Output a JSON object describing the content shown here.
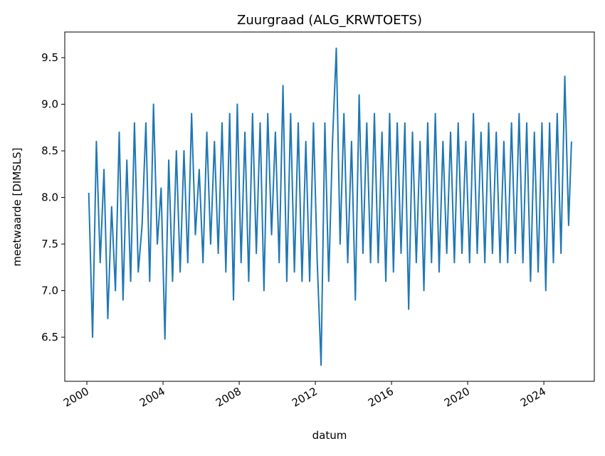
{
  "chart_data": {
    "type": "line",
    "title": "Zuurgraad (ALG_KRWTOETS)",
    "xlabel": "datum",
    "ylabel": "meetwaarde [DIMSLS]",
    "xlim": [
      1998.84,
      2026.65
    ],
    "ylim": [
      6.027,
      9.775
    ],
    "xticks": [
      2000,
      2004,
      2008,
      2012,
      2016,
      2020,
      2024
    ],
    "yticks": [
      6.5,
      {
        "value": 7,
        "label": "7.0"
      },
      7.5,
      {
        "value": 8,
        "label": "8.0"
      },
      8.5,
      {
        "value": 9,
        "label": "9.0"
      },
      9.5
    ],
    "x": [
      2000.1,
      2000.3,
      2000.5,
      2000.7,
      2000.9,
      2001.1,
      2001.3,
      2001.5,
      2001.7,
      2001.9,
      2002.1,
      2002.3,
      2002.5,
      2002.7,
      2002.9,
      2003.1,
      2003.3,
      2003.5,
      2003.7,
      2003.9,
      2004.1,
      2004.3,
      2004.5,
      2004.7,
      2004.9,
      2005.1,
      2005.3,
      2005.5,
      2005.7,
      2005.9,
      2006.1,
      2006.3,
      2006.5,
      2006.7,
      2006.9,
      2007.1,
      2007.3,
      2007.5,
      2007.7,
      2007.9,
      2008.1,
      2008.3,
      2008.5,
      2008.7,
      2008.9,
      2009.1,
      2009.3,
      2009.5,
      2009.7,
      2009.9,
      2010.1,
      2010.3,
      2010.5,
      2010.7,
      2010.9,
      2011.1,
      2011.3,
      2011.5,
      2011.7,
      2011.9,
      2012.1,
      2012.3,
      2012.5,
      2012.7,
      2012.9,
      2013.1,
      2013.3,
      2013.5,
      2013.7,
      2013.9,
      2014.1,
      2014.3,
      2014.5,
      2014.7,
      2014.9,
      2015.1,
      2015.3,
      2015.5,
      2015.7,
      2015.9,
      2016.1,
      2016.3,
      2016.5,
      2016.7,
      2016.9,
      2017.1,
      2017.3,
      2017.5,
      2017.7,
      2017.9,
      2018.1,
      2018.3,
      2018.5,
      2018.7,
      2018.9,
      2019.1,
      2019.3,
      2019.5,
      2019.7,
      2019.9,
      2020.1,
      2020.3,
      2020.5,
      2020.7,
      2020.9,
      2021.1,
      2021.3,
      2021.5,
      2021.7,
      2021.9,
      2022.1,
      2022.3,
      2022.5,
      2022.7,
      2022.9,
      2023.1,
      2023.3,
      2023.5,
      2023.7,
      2023.9,
      2024.1,
      2024.3,
      2024.5,
      2024.7,
      2024.9,
      2025.1,
      2025.3,
      2025.45
    ],
    "series": [
      {
        "color": "#1f77b4",
        "values": [
          8.05,
          6.5,
          8.6,
          7.3,
          8.3,
          6.7,
          7.9,
          7.0,
          8.7,
          6.9,
          8.4,
          7.1,
          8.8,
          7.2,
          7.7,
          8.8,
          7.1,
          9.0,
          7.5,
          8.1,
          6.48,
          8.4,
          7.1,
          8.5,
          7.2,
          8.5,
          7.3,
          8.9,
          7.6,
          8.3,
          7.3,
          8.7,
          7.5,
          8.6,
          7.4,
          8.8,
          7.2,
          8.9,
          6.9,
          9.0,
          7.3,
          8.7,
          7.1,
          8.9,
          7.4,
          8.8,
          7.0,
          8.9,
          7.6,
          8.7,
          7.3,
          9.2,
          7.1,
          8.9,
          7.2,
          8.8,
          7.1,
          8.6,
          7.1,
          8.8,
          7.3,
          6.2,
          8.8,
          7.1,
          8.6,
          9.6,
          7.5,
          8.9,
          7.3,
          8.6,
          6.9,
          9.1,
          7.4,
          8.8,
          7.3,
          8.9,
          7.3,
          8.7,
          7.1,
          8.9,
          7.2,
          8.8,
          7.4,
          8.8,
          6.8,
          8.7,
          7.3,
          8.6,
          7.0,
          8.8,
          7.3,
          8.9,
          7.2,
          8.6,
          7.4,
          8.7,
          7.3,
          8.8,
          7.4,
          8.6,
          7.3,
          8.9,
          7.4,
          8.7,
          7.3,
          8.8,
          7.4,
          8.7,
          7.3,
          8.6,
          7.3,
          8.8,
          7.4,
          8.9,
          7.3,
          8.8,
          7.1,
          8.7,
          7.2,
          8.8,
          7.0,
          8.8,
          7.3,
          8.9,
          7.4,
          9.3,
          7.7,
          8.6
        ]
      }
    ]
  }
}
